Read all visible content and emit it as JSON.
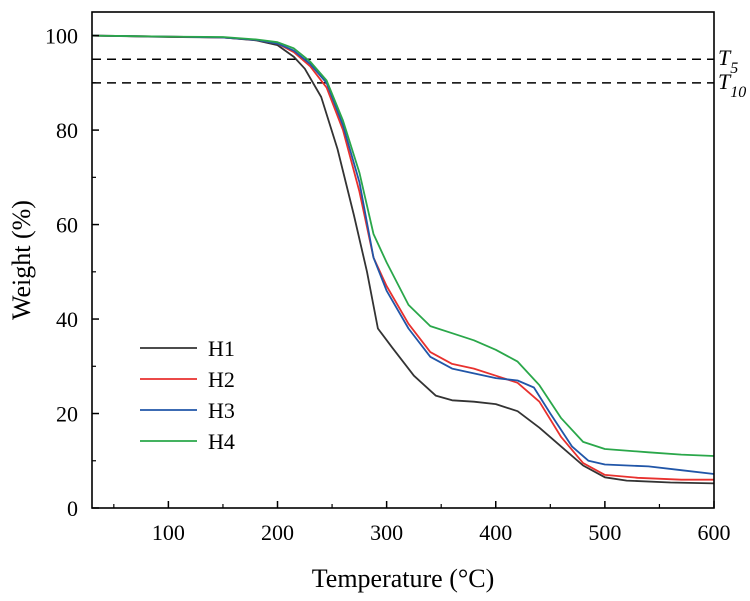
{
  "chart_data": {
    "type": "line",
    "title": "",
    "xlabel": "Temperature (°C)",
    "ylabel": "Weight (%)",
    "xlim": [
      30,
      600
    ],
    "ylim": [
      0,
      105
    ],
    "x_ticks": [
      100,
      200,
      300,
      400,
      500,
      600
    ],
    "y_ticks": [
      0,
      20,
      40,
      60,
      80,
      100
    ],
    "legend_position": "lower-left",
    "grid": false,
    "reference_lines": [
      {
        "name": "T",
        "subscript": "5",
        "y": 95
      },
      {
        "name": "T",
        "subscript": "10",
        "y": 90
      }
    ],
    "series": [
      {
        "name": "H1",
        "color": "#333333",
        "points": [
          [
            30,
            100
          ],
          [
            100,
            99.7
          ],
          [
            150,
            99.6
          ],
          [
            180,
            99.0
          ],
          [
            200,
            98.0
          ],
          [
            215,
            95.5
          ],
          [
            225,
            93
          ],
          [
            240,
            87
          ],
          [
            255,
            76
          ],
          [
            270,
            62
          ],
          [
            282,
            50
          ],
          [
            292,
            38
          ],
          [
            305,
            34
          ],
          [
            325,
            28
          ],
          [
            345,
            23.8
          ],
          [
            360,
            22.8
          ],
          [
            380,
            22.5
          ],
          [
            400,
            22
          ],
          [
            420,
            20.5
          ],
          [
            440,
            17
          ],
          [
            460,
            13
          ],
          [
            480,
            9
          ],
          [
            500,
            6.5
          ],
          [
            520,
            5.8
          ],
          [
            560,
            5.4
          ],
          [
            600,
            5.2
          ]
        ]
      },
      {
        "name": "H2",
        "color": "#e8312e",
        "points": [
          [
            30,
            100
          ],
          [
            100,
            99.8
          ],
          [
            150,
            99.6
          ],
          [
            180,
            99.1
          ],
          [
            200,
            98.3
          ],
          [
            215,
            96.5
          ],
          [
            230,
            93.5
          ],
          [
            245,
            89
          ],
          [
            260,
            80
          ],
          [
            275,
            67
          ],
          [
            288,
            53
          ],
          [
            300,
            47
          ],
          [
            320,
            39
          ],
          [
            340,
            33
          ],
          [
            360,
            30.5
          ],
          [
            380,
            29.5
          ],
          [
            400,
            28
          ],
          [
            420,
            26.5
          ],
          [
            440,
            22.5
          ],
          [
            460,
            15
          ],
          [
            480,
            9.5
          ],
          [
            500,
            7
          ],
          [
            530,
            6.4
          ],
          [
            570,
            6
          ],
          [
            600,
            6
          ]
        ]
      },
      {
        "name": "H3",
        "color": "#2156a8",
        "points": [
          [
            30,
            100
          ],
          [
            100,
            99.8
          ],
          [
            150,
            99.6
          ],
          [
            180,
            99.1
          ],
          [
            200,
            98.3
          ],
          [
            215,
            96.8
          ],
          [
            230,
            94
          ],
          [
            245,
            90
          ],
          [
            260,
            81
          ],
          [
            275,
            69
          ],
          [
            288,
            53
          ],
          [
            300,
            46
          ],
          [
            320,
            38
          ],
          [
            340,
            32
          ],
          [
            360,
            29.5
          ],
          [
            380,
            28.5
          ],
          [
            400,
            27.5
          ],
          [
            420,
            27
          ],
          [
            435,
            25.5
          ],
          [
            450,
            20
          ],
          [
            470,
            13
          ],
          [
            485,
            10
          ],
          [
            500,
            9.2
          ],
          [
            540,
            8.8
          ],
          [
            570,
            8
          ],
          [
            600,
            7.2
          ]
        ]
      },
      {
        "name": "H4",
        "color": "#2aa74a",
        "points": [
          [
            30,
            100
          ],
          [
            100,
            99.8
          ],
          [
            150,
            99.7
          ],
          [
            180,
            99.2
          ],
          [
            200,
            98.6
          ],
          [
            215,
            97.3
          ],
          [
            230,
            94.5
          ],
          [
            245,
            90.5
          ],
          [
            260,
            82
          ],
          [
            275,
            71
          ],
          [
            288,
            58
          ],
          [
            300,
            52
          ],
          [
            320,
            43
          ],
          [
            340,
            38.5
          ],
          [
            360,
            37
          ],
          [
            380,
            35.5
          ],
          [
            400,
            33.5
          ],
          [
            420,
            31
          ],
          [
            440,
            26
          ],
          [
            460,
            19
          ],
          [
            480,
            14
          ],
          [
            500,
            12.5
          ],
          [
            540,
            11.8
          ],
          [
            570,
            11.3
          ],
          [
            600,
            11
          ]
        ]
      }
    ]
  }
}
